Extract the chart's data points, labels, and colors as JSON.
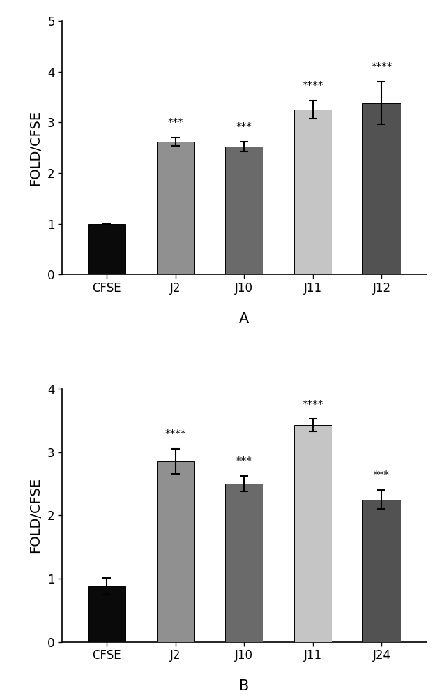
{
  "chart_A": {
    "categories": [
      "CFSE",
      "J2",
      "J10",
      "J11",
      "J12"
    ],
    "values": [
      1.0,
      2.62,
      2.52,
      3.25,
      3.38
    ],
    "errors": [
      0.0,
      0.08,
      0.1,
      0.18,
      0.42
    ],
    "colors": [
      "#0a0a0a",
      "#909090",
      "#6a6a6a",
      "#c5c5c5",
      "#525252"
    ],
    "significance": [
      "",
      "***",
      "***",
      "****",
      "****"
    ],
    "ylim": [
      0,
      5
    ],
    "yticks": [
      0,
      1,
      2,
      3,
      4,
      5
    ],
    "ylabel": "FOLD/CFSE",
    "label": "A"
  },
  "chart_B": {
    "categories": [
      "CFSE",
      "J2",
      "J10",
      "J11",
      "J24"
    ],
    "values": [
      0.88,
      2.85,
      2.5,
      3.42,
      2.25
    ],
    "errors": [
      0.13,
      0.2,
      0.12,
      0.1,
      0.15
    ],
    "colors": [
      "#0a0a0a",
      "#909090",
      "#6a6a6a",
      "#c5c5c5",
      "#525252"
    ],
    "significance": [
      "",
      "****",
      "***",
      "****",
      "***"
    ],
    "ylim": [
      0,
      4
    ],
    "yticks": [
      0,
      1,
      2,
      3,
      4
    ],
    "ylabel": "FOLD/CFSE",
    "label": "B"
  },
  "bar_width": 0.55,
  "capsize": 4,
  "elinewidth": 1.5,
  "capthick": 1.5,
  "sig_fontsize": 11,
  "label_fontsize": 15,
  "tick_fontsize": 12,
  "axis_label_fontsize": 14
}
